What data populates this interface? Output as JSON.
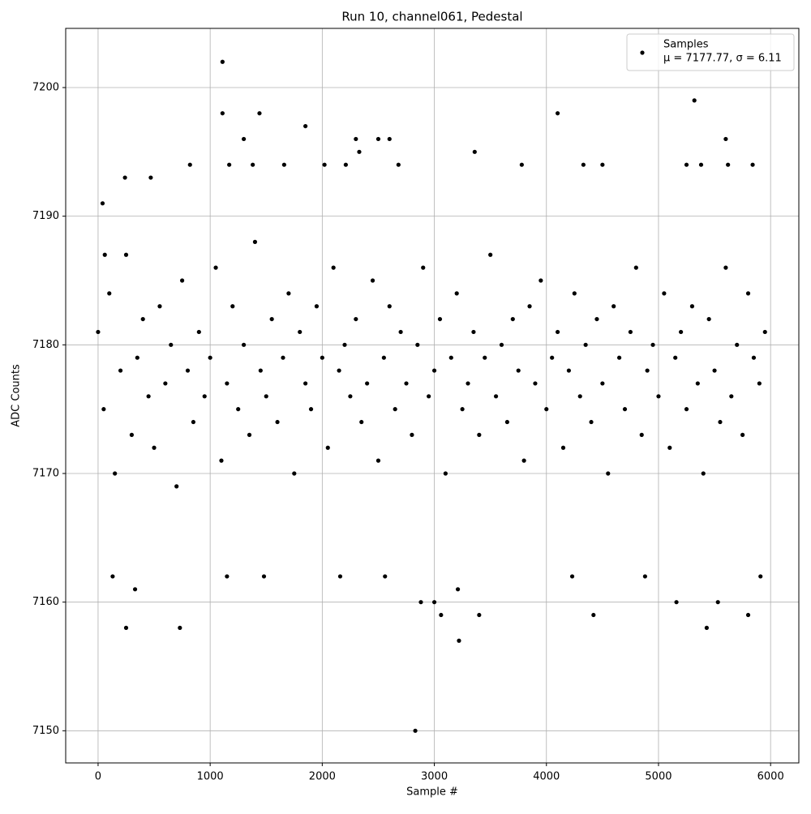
{
  "chart_data": {
    "type": "scatter",
    "title": "Run 10, channel061, Pedestal",
    "x_label": "Sample #",
    "y_label": "ADC Counts",
    "xlim": [
      -289,
      6252
    ],
    "ylim": [
      7147.5,
      7204.6
    ],
    "xticks": [
      0,
      1000,
      2000,
      3000,
      4000,
      5000,
      6000
    ],
    "yticks": [
      7150,
      7160,
      7170,
      7180,
      7190,
      7200
    ],
    "grid": true,
    "legend": "upper right",
    "legend_stats": "μ = 7177.77, σ = 6.11",
    "series": [
      {
        "name": "Samples",
        "color": "#000000",
        "x": [
          0,
          50,
          100,
          150,
          200,
          250,
          300,
          350,
          400,
          450,
          500,
          550,
          600,
          650,
          700,
          750,
          800,
          850,
          900,
          950,
          1000,
          1050,
          1100,
          1150,
          1200,
          1250,
          1300,
          1350,
          1400,
          1450,
          1500,
          1550,
          1600,
          1650,
          1700,
          1750,
          1800,
          1850,
          1900,
          1950,
          2000,
          2050,
          2100,
          2150,
          2200,
          2250,
          2300,
          2350,
          2400,
          2450,
          2500,
          2550,
          2600,
          2650,
          2700,
          2750,
          2800,
          2850,
          2900,
          2950,
          3000,
          3050,
          3100,
          3150,
          3200,
          3250,
          3300,
          3350,
          3400,
          3450,
          3500,
          3550,
          3600,
          3650,
          3700,
          3750,
          3800,
          3850,
          3900,
          3950,
          4000,
          4050,
          4100,
          4150,
          4200,
          4250,
          4300,
          4350,
          4400,
          4450,
          4500,
          4550,
          4600,
          4650,
          4700,
          4750,
          4800,
          4850,
          4900,
          4950,
          5000,
          5050,
          5100,
          5150,
          5200,
          5250,
          5300,
          5350,
          5400,
          5450,
          5500,
          5550,
          5600,
          5650,
          5700,
          5750,
          5800,
          5850,
          5900,
          5950,
          250,
          730,
          1110,
          1110,
          1440,
          1850,
          1300,
          2300,
          2500,
          2600,
          4100,
          5320,
          5600,
          2830,
          3220,
          3060,
          2880,
          3000,
          3400,
          4420,
          5160,
          5430,
          5530,
          5800,
          330,
          3210,
          3360,
          2330,
          130,
          1150,
          1480,
          2160,
          2560,
          4230,
          4880,
          5910,
          60,
          40,
          240,
          470,
          820,
          1170,
          1380,
          1660,
          2020,
          2210,
          2680,
          3780,
          4330,
          4500,
          5250,
          5380,
          5620,
          5840
        ],
        "values": [
          7181,
          7175,
          7184,
          7170,
          7178,
          7187,
          7173,
          7179,
          7182,
          7176,
          7172,
          7183,
          7177,
          7180,
          7169,
          7185,
          7178,
          7174,
          7181,
          7176,
          7179,
          7186,
          7171,
          7177,
          7183,
          7175,
          7180,
          7173,
          7188,
          7178,
          7176,
          7182,
          7174,
          7179,
          7184,
          7170,
          7181,
          7177,
          7175,
          7183,
          7179,
          7172,
          7186,
          7178,
          7180,
          7176,
          7182,
          7174,
          7177,
          7185,
          7171,
          7179,
          7183,
          7175,
          7181,
          7177,
          7173,
          7180,
          7186,
          7176,
          7178,
          7182,
          7170,
          7179,
          7184,
          7175,
          7177,
          7181,
          7173,
          7179,
          7187,
          7176,
          7180,
          7174,
          7182,
          7178,
          7171,
          7183,
          7177,
          7185,
          7175,
          7179,
          7181,
          7172,
          7178,
          7184,
          7176,
          7180,
          7174,
          7182,
          7177,
          7170,
          7183,
          7179,
          7175,
          7181,
          7186,
          7173,
          7178,
          7180,
          7176,
          7184,
          7172,
          7179,
          7181,
          7175,
          7183,
          7177,
          7170,
          7182,
          7178,
          7174,
          7186,
          7176,
          7180,
          7173,
          7184,
          7179,
          7177,
          7181,
          7158,
          7158,
          7202,
          7198,
          7198,
          7197,
          7196,
          7196,
          7196,
          7196,
          7198,
          7199,
          7196,
          7150,
          7157,
          7159,
          7160,
          7160,
          7159,
          7159,
          7160,
          7158,
          7160,
          7159,
          7161,
          7161,
          7195,
          7195,
          7162,
          7162,
          7162,
          7162,
          7162,
          7162,
          7162,
          7162,
          7187,
          7191,
          7193,
          7193,
          7194,
          7194,
          7194,
          7194,
          7194,
          7194,
          7194,
          7194,
          7194,
          7194,
          7194,
          7194,
          7194,
          7194
        ]
      }
    ]
  }
}
